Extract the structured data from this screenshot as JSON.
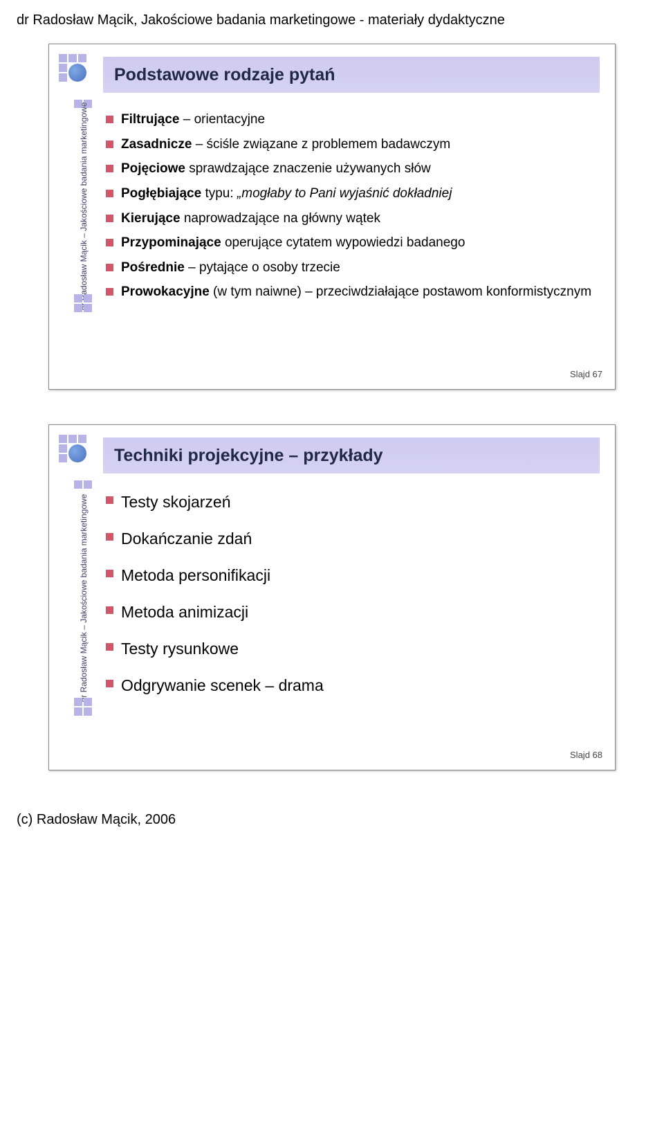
{
  "page_header": "dr Radosław Mącik, Jakościowe badania marketingowe - materiały dydaktyczne",
  "page_footer": "(c) Radosław Mącik, 2006",
  "side_text": "dr Radosław Mącik – Jakościowe badania marketingowe",
  "accent_sq_color": "#b7b3e6",
  "bullet_color": "#d0576a",
  "title_bg": "#d2cdf0",
  "title_color": "#202848",
  "slide1": {
    "title": "Podstawowe rodzaje pytań",
    "items": [
      {
        "lead": "Filtrujące",
        "rest": " – orientacyjne"
      },
      {
        "lead": "Zasadnicze",
        "rest": " – ściśle związane z problemem badawczym"
      },
      {
        "lead": "Pojęciowe",
        "rest": " sprawdzające znaczenie używanych słów"
      },
      {
        "lead": "Pogłębiające",
        "rest_before": " typu: ",
        "ital": "„mogłaby to Pani wyjaśnić dokładniej"
      },
      {
        "lead": "Kierujące",
        "rest": " naprowadzające na główny wątek"
      },
      {
        "lead": "Przypominające",
        "rest": " operujące cytatem wypowiedzi badanego"
      },
      {
        "lead": "Pośrednie",
        "rest": " – pytające o osoby trzecie"
      },
      {
        "lead": "Prowokacyjne",
        "rest": " (w tym naiwne) – przeciwdziałające postawom konformistycznym"
      }
    ],
    "slide_label": "Slajd 67"
  },
  "slide2": {
    "title": "Techniki projekcyjne – przykłady",
    "items": [
      "Testy skojarzeń",
      "Dokańczanie zdań",
      "Metoda personifikacji",
      "Metoda animizacji",
      "Testy rysunkowe",
      "Odgrywanie scenek – drama"
    ],
    "slide_label": "Slajd 68"
  }
}
